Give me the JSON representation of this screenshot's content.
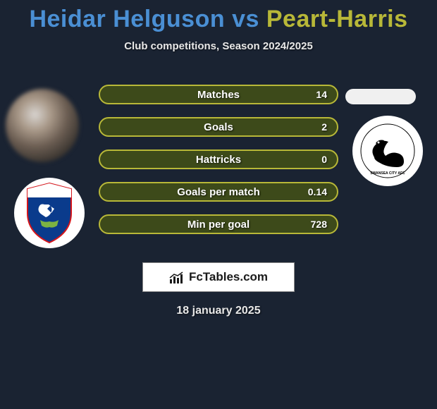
{
  "title": {
    "player1": "Heidar Helguson",
    "vs": "vs",
    "player2": "Peart-Harris",
    "color1": "#4a8fd4",
    "color2": "#b8b838"
  },
  "subtitle": "Club competitions, Season 2024/2025",
  "bar_border_color": "#b8b838",
  "bar_bg_color": "#3d4a1a",
  "stats": [
    {
      "label": "Matches",
      "value": "14"
    },
    {
      "label": "Goals",
      "value": "2"
    },
    {
      "label": "Hattricks",
      "value": "0"
    },
    {
      "label": "Goals per match",
      "value": "0.14"
    },
    {
      "label": "Min per goal",
      "value": "728"
    }
  ],
  "logo_text": "FcTables.com",
  "date": "18 january 2025",
  "cardiff_colors": {
    "shield": "#0a3b8c",
    "bird": "#ffffff",
    "accent": "#d4141a"
  },
  "swansea_colors": {
    "swan": "#000000",
    "bg": "#ffffff"
  }
}
